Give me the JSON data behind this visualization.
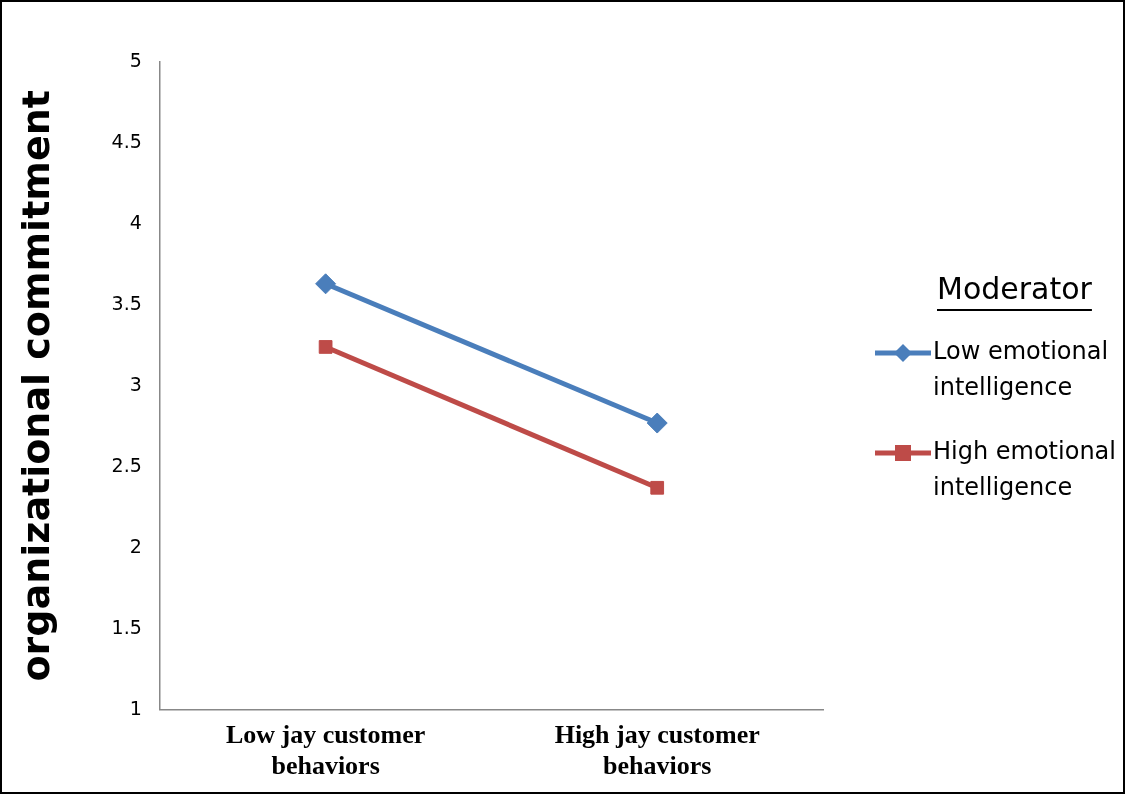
{
  "chart_data": {
    "type": "line",
    "ylabel": "organizational commitment",
    "legend_title": "Moderator",
    "legend": "right",
    "categories": [
      "Low jay customer behaviors",
      "High jay customer behaviors"
    ],
    "ylim": [
      1,
      5
    ],
    "yticks": [
      1,
      1.5,
      2,
      2.5,
      3,
      3.5,
      4,
      4.5,
      5
    ],
    "grid": false,
    "series": [
      {
        "name": "Low emotional intelligence",
        "color": "#4a7ebb",
        "marker": "diamond",
        "values": [
          3.63,
          2.77
        ]
      },
      {
        "name": "High emotional intelligence",
        "color": "#be4b48",
        "marker": "square",
        "values": [
          3.24,
          2.37
        ]
      }
    ]
  }
}
